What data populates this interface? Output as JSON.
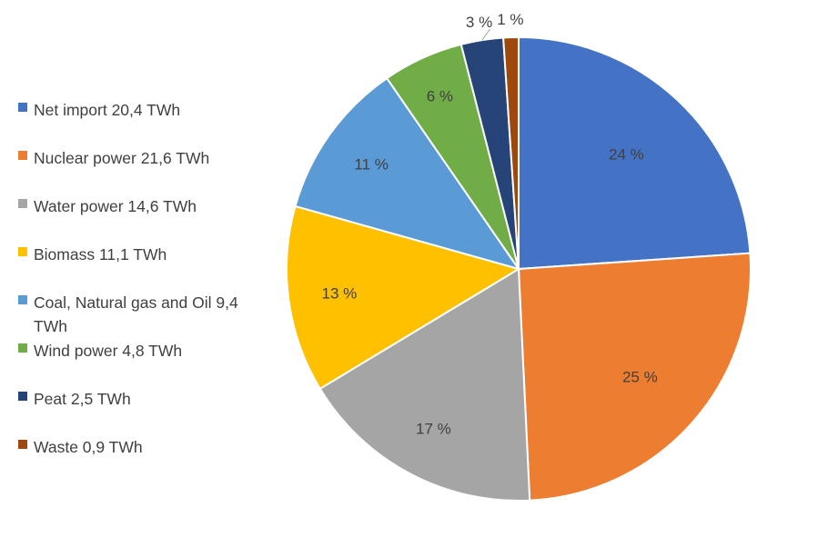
{
  "chart_data": {
    "type": "pie",
    "title": "",
    "series": [
      {
        "name": "Net import 20,4 TWh",
        "value": 20.4,
        "label": "24 %",
        "color": "#4472C4"
      },
      {
        "name": "Nuclear power 21,6 TWh",
        "value": 21.6,
        "label": "25 %",
        "color": "#ED7D31"
      },
      {
        "name": "Water power 14,6 TWh",
        "value": 14.6,
        "label": "17 %",
        "color": "#A5A5A5"
      },
      {
        "name": "Biomass 11,1 TWh",
        "value": 11.1,
        "label": "13 %",
        "color": "#FFC000"
      },
      {
        "name": "Coal, Natural gas and Oil 9,4 TWh",
        "value": 9.4,
        "label": "11 %",
        "color": "#5B9BD5"
      },
      {
        "name": "Wind power 4,8 TWh",
        "value": 4.8,
        "label": "6 %",
        "color": "#70AD47"
      },
      {
        "name": "Peat 2,5 TWh",
        "value": 2.5,
        "label": "3 %",
        "color": "#264478"
      },
      {
        "name": "Waste 0,9 TWh",
        "value": 0.9,
        "label": "1 %",
        "color": "#9E480E"
      }
    ],
    "legend_position": "left"
  }
}
